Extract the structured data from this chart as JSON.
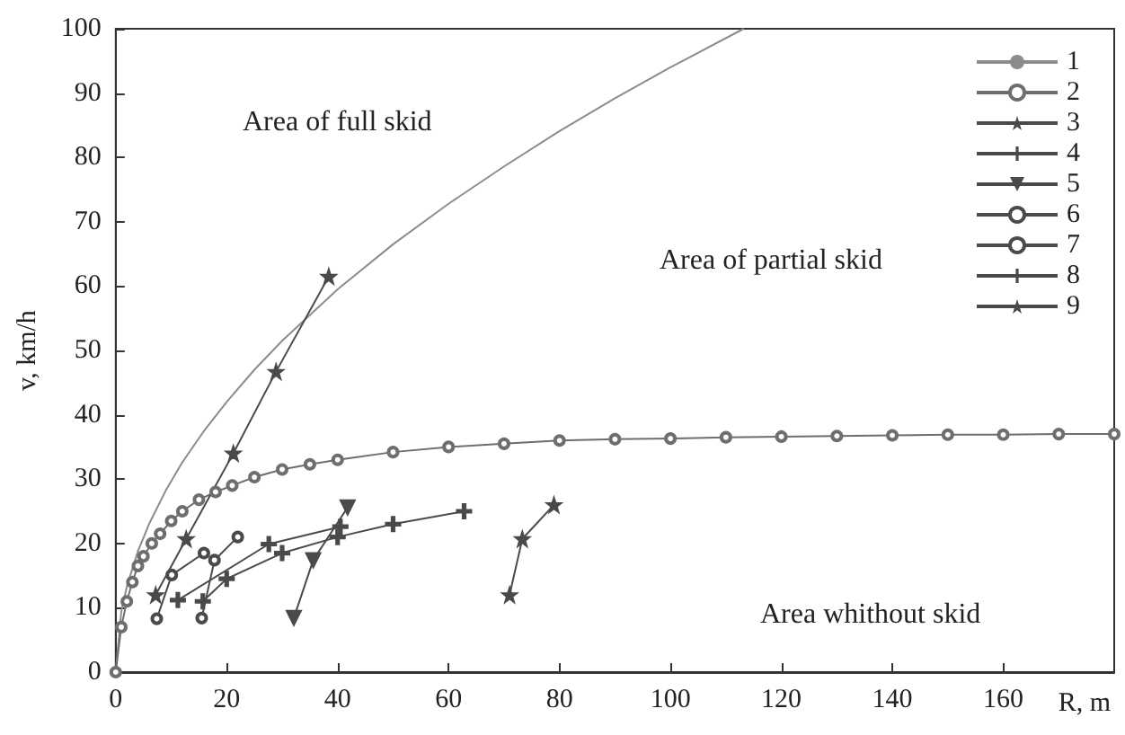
{
  "chart_data": {
    "type": "line",
    "xlabel": "R, m",
    "ylabel": "v, km/h",
    "xlim": [
      0,
      180
    ],
    "xticks": [
      0,
      20,
      40,
      60,
      80,
      100,
      120,
      140,
      160
    ],
    "ylim": [
      0,
      100
    ],
    "yticks": [
      0,
      10,
      20,
      30,
      40,
      50,
      60,
      70,
      80,
      90,
      100
    ],
    "grid": false,
    "legend": "top right",
    "annotations": [
      "Area of full skid",
      "Area of partial skid",
      "Area whithout skid"
    ],
    "series": [
      {
        "name": "1",
        "color": "#8c8c8c",
        "marker": "none",
        "x": [
          0,
          1,
          2,
          4,
          6,
          9,
          12,
          16,
          20,
          25,
          30,
          40,
          50,
          60,
          70,
          80,
          90,
          100,
          113.2
        ],
        "values": [
          0,
          9.4,
          13.3,
          18.8,
          23.0,
          28.2,
          32.6,
          37.6,
          42.0,
          47.0,
          51.5,
          59.5,
          66.5,
          72.8,
          78.6,
          84.1,
          89.2,
          94.0,
          100
        ]
      },
      {
        "name": "2",
        "color": "#6e6e6e",
        "marker": "circle",
        "x": [
          0,
          1,
          2,
          3,
          4,
          5,
          6.5,
          8,
          10,
          12,
          15,
          18,
          21,
          25,
          30,
          35,
          40,
          50,
          60,
          70,
          80,
          90,
          100,
          110,
          120,
          130,
          140,
          150,
          160,
          170,
          180
        ],
        "values": [
          0,
          7,
          11,
          14,
          16.5,
          18,
          20,
          21.5,
          23.5,
          25,
          26.8,
          28,
          29,
          30.3,
          31.5,
          32.3,
          33,
          34.2,
          35,
          35.5,
          36,
          36.2,
          36.3,
          36.5,
          36.6,
          36.7,
          36.8,
          36.9,
          36.9,
          37,
          37
        ]
      },
      {
        "name": "3",
        "color": "#4a4a4a",
        "marker": "star",
        "x": [
          7.2,
          12.7,
          21.2,
          28.9,
          38.4
        ],
        "values": [
          12,
          20.7,
          34,
          46.7,
          61.5
        ]
      },
      {
        "name": "4",
        "color": "#4a4a4a",
        "marker": "cross",
        "x": [
          15.7,
          20,
          30,
          40,
          50,
          62.8
        ],
        "values": [
          11,
          14.5,
          18.5,
          21,
          23,
          25
        ]
      },
      {
        "name": "5",
        "color": "#4a4a4a",
        "marker": "triangle",
        "x": [
          32.1,
          35.6,
          41.8
        ],
        "values": [
          8.4,
          17.4,
          25.6
        ]
      },
      {
        "name": "6",
        "color": "#4a4a4a",
        "marker": "circle",
        "x": [
          15.5,
          17.8,
          22
        ],
        "values": [
          8.4,
          17.4,
          21
        ]
      },
      {
        "name": "7",
        "color": "#4a4a4a",
        "marker": "circle",
        "x": [
          7.4,
          10.1,
          15.9
        ],
        "values": [
          8.3,
          15.1,
          18.5
        ]
      },
      {
        "name": "8",
        "color": "#4a4a4a",
        "marker": "cross",
        "x": [
          11.2,
          27.6,
          40.5
        ],
        "values": [
          11.2,
          19.9,
          22.6
        ]
      },
      {
        "name": "9",
        "color": "#4a4a4a",
        "marker": "star",
        "x": [
          71,
          73.3,
          79
        ],
        "values": [
          12,
          20.7,
          26
        ]
      }
    ]
  }
}
